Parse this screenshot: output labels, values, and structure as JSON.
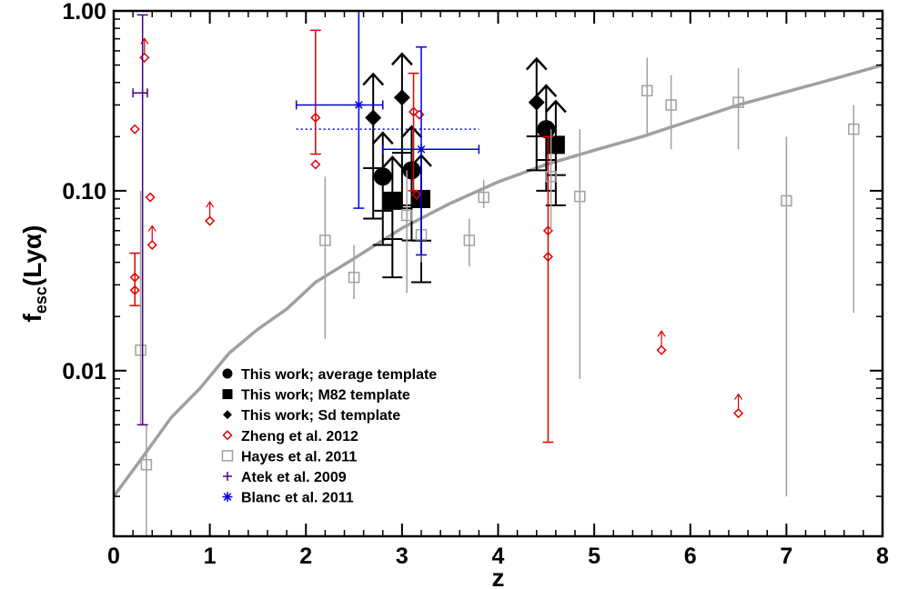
{
  "chart_data": {
    "type": "scatter",
    "xlabel": "z",
    "ylabel": {
      "main": "f",
      "sub": "esc",
      "rest": "(Lyα)"
    },
    "xlim": [
      0,
      8
    ],
    "ylim": [
      0.0012,
      1.0
    ],
    "yscale": "log",
    "x_ticks": [
      "0",
      "1",
      "2",
      "3",
      "4",
      "5",
      "6",
      "7",
      "8"
    ],
    "y_ticks": [
      "0.01",
      "0.10",
      "1.00"
    ],
    "colors": {
      "this_work": "#000000",
      "zheng": "#e00000",
      "hayes": "#a0a0a0",
      "atek": "#4b0082",
      "blanc": "#0000e0",
      "curve": "#a0a0a0"
    },
    "curve": {
      "x": [
        0,
        0.3,
        0.6,
        0.9,
        1.2,
        1.5,
        1.8,
        2.1,
        2.5,
        3.0,
        3.5,
        4.0,
        4.5,
        5.0,
        5.5,
        6.0,
        6.5,
        7.0,
        7.5,
        8.0
      ],
      "y": [
        0.002,
        0.0033,
        0.0055,
        0.008,
        0.0125,
        0.017,
        0.022,
        0.031,
        0.042,
        0.062,
        0.085,
        0.112,
        0.14,
        0.168,
        0.2,
        0.245,
        0.3,
        0.355,
        0.42,
        0.5
      ]
    },
    "legend": [
      {
        "label": "This work; average template",
        "marker": "circle",
        "color": "#000000"
      },
      {
        "label": "This work; M82 template",
        "marker": "square-filled",
        "color": "#000000"
      },
      {
        "label": "This work; Sd template",
        "marker": "diamond-filled",
        "color": "#000000"
      },
      {
        "label": "Zheng et al. 2012",
        "marker": "diamond-open",
        "color": "#e00000"
      },
      {
        "label": "Hayes et al. 2011",
        "marker": "square-open",
        "color": "#a0a0a0"
      },
      {
        "label": "Atek et al. 2009",
        "marker": "plus",
        "color": "#4b0082"
      },
      {
        "label": "Blanc et al. 2011",
        "marker": "asterisk",
        "color": "#0000e0"
      }
    ],
    "series": [
      {
        "name": "This work; average template",
        "marker": "circle",
        "points": [
          {
            "x": 2.8,
            "y": 0.12,
            "lo": 0.05,
            "limit": true
          },
          {
            "x": 3.1,
            "y": 0.13,
            "lo": 0.053,
            "limit": true
          },
          {
            "x": 4.5,
            "y": 0.22,
            "lo": 0.1,
            "limit": true
          }
        ]
      },
      {
        "name": "This work; M82 template",
        "marker": "square-filled",
        "points": [
          {
            "x": 2.9,
            "y": 0.088,
            "lo": 0.033,
            "limit": true
          },
          {
            "x": 3.2,
            "y": 0.09,
            "lo": 0.031,
            "limit": true
          },
          {
            "x": 4.6,
            "y": 0.18,
            "lo": 0.083,
            "limit": true
          }
        ]
      },
      {
        "name": "This work; Sd template",
        "marker": "diamond-filled",
        "points": [
          {
            "x": 2.7,
            "y": 0.255,
            "lo": 0.07,
            "limit": true
          },
          {
            "x": 3.0,
            "y": 0.33,
            "lo": 0.08,
            "limit": true
          },
          {
            "x": 4.4,
            "y": 0.31,
            "lo": 0.13,
            "limit": true
          }
        ]
      },
      {
        "name": "Zheng et al. 2012",
        "marker": "diamond-open",
        "points": [
          {
            "x": 0.22,
            "y": 0.22
          },
          {
            "x": 0.22,
            "y": 0.033,
            "lo": 0.023,
            "hi": 0.045
          },
          {
            "x": 0.22,
            "y": 0.028
          },
          {
            "x": 0.32,
            "y": 0.55,
            "limit": true
          },
          {
            "x": 0.38,
            "y": 0.092
          },
          {
            "x": 0.4,
            "y": 0.05,
            "limit": true
          },
          {
            "x": 1.0,
            "y": 0.068,
            "limit": true
          },
          {
            "x": 2.1,
            "y": 0.255,
            "lo": 0.16,
            "hi": 0.78
          },
          {
            "x": 2.1,
            "y": 0.14
          },
          {
            "x": 3.12,
            "y": 0.275,
            "lo": 0.1,
            "hi": 0.45
          },
          {
            "x": 3.18,
            "y": 0.265
          },
          {
            "x": 3.15,
            "y": 0.095
          },
          {
            "x": 4.52,
            "y": 0.06,
            "lo": 0.004,
            "hi": 0.2
          },
          {
            "x": 4.52,
            "y": 0.043
          },
          {
            "x": 5.7,
            "y": 0.013,
            "limit": true
          },
          {
            "x": 6.5,
            "y": 0.0058,
            "limit": true
          }
        ]
      },
      {
        "name": "Hayes et al. 2011",
        "marker": "square-open",
        "points": [
          {
            "x": 0.28,
            "y": 0.013,
            "lo": 0.005,
            "hi": 0.1
          },
          {
            "x": 0.34,
            "y": 0.003,
            "lo": 0.0012,
            "hi": 0.005
          },
          {
            "x": 2.2,
            "y": 0.053,
            "lo": 0.015,
            "hi": 0.12
          },
          {
            "x": 2.5,
            "y": 0.033,
            "lo": 0.025,
            "hi": 0.05
          },
          {
            "x": 3.05,
            "y": 0.073,
            "lo": 0.027,
            "hi": 0.13
          },
          {
            "x": 3.2,
            "y": 0.057,
            "lo": 0.04,
            "hi": 0.08
          },
          {
            "x": 3.7,
            "y": 0.053,
            "lo": 0.038,
            "hi": 0.07
          },
          {
            "x": 3.85,
            "y": 0.092,
            "lo": 0.08,
            "hi": 0.115
          },
          {
            "x": 4.55,
            "y": 0.12,
            "lo": 0.06,
            "hi": 0.22
          },
          {
            "x": 4.85,
            "y": 0.093,
            "lo": 0.009,
            "hi": 0.22
          },
          {
            "x": 5.55,
            "y": 0.36,
            "lo": 0.2,
            "hi": 0.55
          },
          {
            "x": 5.8,
            "y": 0.3,
            "lo": 0.17,
            "hi": 0.44
          },
          {
            "x": 6.5,
            "y": 0.31,
            "lo": 0.17,
            "hi": 0.48
          },
          {
            "x": 7.0,
            "y": 0.088,
            "lo": 0.002,
            "hi": 0.2
          },
          {
            "x": 7.7,
            "y": 0.22,
            "lo": 0.021,
            "hi": 0.3
          }
        ]
      },
      {
        "name": "Atek et al. 2009",
        "marker": "plus",
        "points": [
          {
            "x": 0.3,
            "y": 0.35,
            "lo": 0.005,
            "hi": 0.95,
            "xlo": 0.2,
            "xhi": 0.35
          }
        ]
      },
      {
        "name": "Blanc et al. 2011",
        "marker": "asterisk",
        "points": [
          {
            "x": 2.55,
            "y": 0.3,
            "lo": 0.08,
            "hi": 1.0,
            "xlo": 1.9,
            "xhi": 2.8
          },
          {
            "x": 3.2,
            "y": 0.17,
            "lo": 0.044,
            "hi": 0.63,
            "xlo": 2.8,
            "xhi": 3.8
          }
        ]
      }
    ],
    "reference_line": {
      "y": 0.22,
      "x": [
        1.9,
        3.8
      ],
      "style": "dotted",
      "color": "#0000e0"
    }
  }
}
